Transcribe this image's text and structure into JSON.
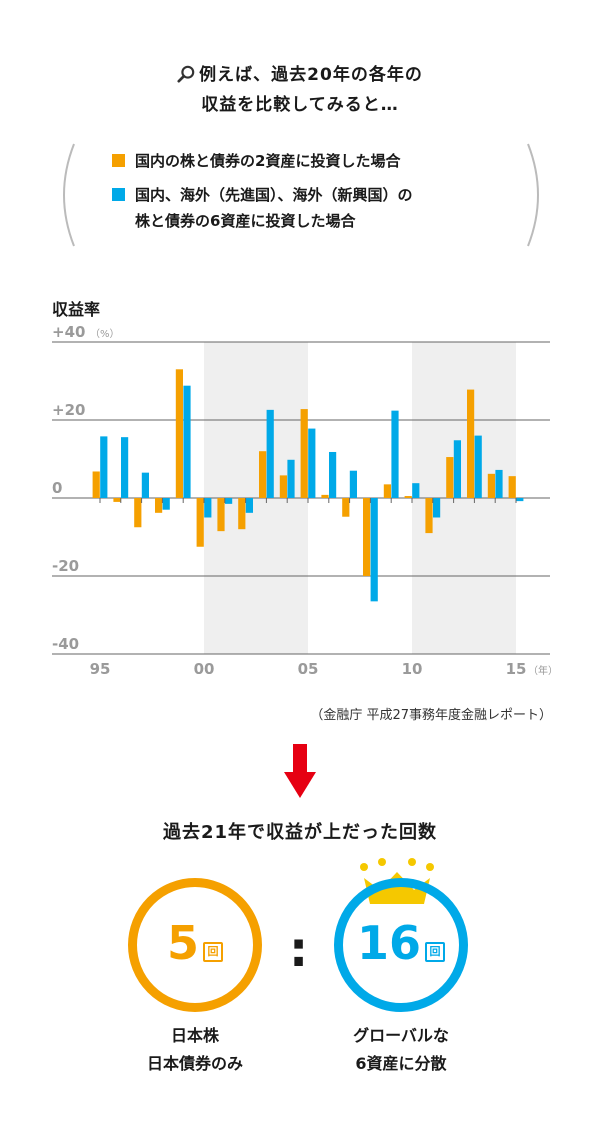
{
  "intro": {
    "line1": "例えば、過去20年の各年の",
    "line2": "収益を比較してみると…"
  },
  "legend": {
    "domestic": "国内の株と債券の2資産に投資した場合",
    "global_line1": "国内、海外（先進国）、海外（新興国）の",
    "global_line2": "株と債券の6資産に投資した場合"
  },
  "colors": {
    "orange": "#f5a000",
    "blue": "#00a9e8",
    "shade": "#efefef",
    "grid": "#666666",
    "arrow": "#e60012"
  },
  "chart_data": {
    "type": "bar",
    "title": "収益率",
    "xlabel": "",
    "ylabel": "収益率",
    "y_unit": "（%）",
    "x_unit": "（年）",
    "ylim": [
      -40,
      40
    ],
    "yticks": [
      {
        "value": 40,
        "label": "+40"
      },
      {
        "value": 20,
        "label": "+20"
      },
      {
        "value": 0,
        "label": "0"
      },
      {
        "value": -20,
        "label": "-20"
      },
      {
        "value": -40,
        "label": "-40"
      }
    ],
    "xticks": [
      {
        "year": 1995,
        "label": "95"
      },
      {
        "year": 2000,
        "label": "00"
      },
      {
        "year": 2005,
        "label": "05"
      },
      {
        "year": 2010,
        "label": "10"
      },
      {
        "year": 2015,
        "label": "15"
      }
    ],
    "shaded_ranges": [
      [
        2000,
        2005
      ],
      [
        2010,
        2015
      ]
    ],
    "categories": [
      1995,
      1996,
      1997,
      1998,
      1999,
      2000,
      2001,
      2002,
      2003,
      2004,
      2005,
      2006,
      2007,
      2008,
      2009,
      2010,
      2011,
      2012,
      2013,
      2014,
      2015
    ],
    "series": [
      {
        "name": "国内の株と債券の2資産に投資した場合",
        "color": "orange",
        "values": [
          6.8,
          -1.0,
          -7.5,
          -3.8,
          33.0,
          -12.5,
          -8.5,
          -8.0,
          12.0,
          5.8,
          22.8,
          0.8,
          -4.8,
          -20.0,
          3.5,
          0.5,
          -9.0,
          10.5,
          27.8,
          6.2,
          5.6
        ]
      },
      {
        "name": "国内、海外（先進国）、海外（新興国）の株と債券の6資産に投資した場合",
        "color": "blue",
        "values": [
          15.8,
          15.6,
          6.5,
          -3.0,
          28.8,
          -5.0,
          -1.5,
          -3.8,
          22.6,
          9.8,
          17.8,
          11.8,
          7.0,
          -26.5,
          22.4,
          3.8,
          -5.0,
          14.8,
          16.0,
          7.2,
          -0.8
        ]
      }
    ]
  },
  "source": "（金融庁 平成27事務年度金融レポート）",
  "result": {
    "title": "過去21年で収益が上だった回数",
    "left_count": "5",
    "right_count": "16",
    "unit": "回",
    "colon": ":",
    "left_caption_line1": "日本株",
    "left_caption_line2": "日本債券のみ",
    "right_caption_line1": "グローバルな",
    "right_caption_line2": "6資産に分散"
  }
}
